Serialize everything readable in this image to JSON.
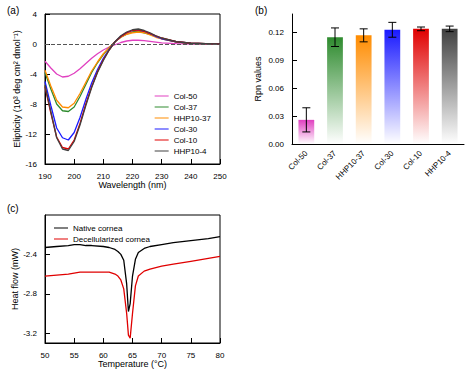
{
  "chart_data": [
    {
      "type": "line",
      "title": "(a)",
      "x_label": "Wavelength (nm)",
      "y_label": "Elipticity (10³ deg cm² dmol⁻¹)",
      "x": [
        190,
        192,
        194,
        196,
        198,
        200,
        202,
        204,
        206,
        208,
        210,
        212,
        214,
        216,
        218,
        220,
        222,
        224,
        226,
        228,
        230,
        235,
        240,
        245,
        250
      ],
      "series": [
        {
          "name": "Col-50",
          "color": "#e040c0",
          "values": [
            -2.3,
            -3.2,
            -4.0,
            -4.4,
            -4.3,
            -3.9,
            -3.3,
            -2.6,
            -1.9,
            -1.3,
            -0.8,
            -0.4,
            -0.1,
            0.2,
            0.4,
            0.5,
            0.5,
            0.45,
            0.35,
            0.25,
            0.15,
            0.05,
            0,
            0,
            0
          ]
        },
        {
          "name": "Col-37",
          "color": "#2e8b2e",
          "values": [
            -3.8,
            -6.0,
            -8.0,
            -8.9,
            -9.0,
            -8.4,
            -7.0,
            -5.4,
            -3.8,
            -2.5,
            -1.4,
            -0.5,
            0.3,
            0.9,
            1.3,
            1.6,
            1.7,
            1.5,
            1.3,
            1.0,
            0.7,
            0.3,
            0.1,
            0.05,
            0
          ]
        },
        {
          "name": "HHP10-37",
          "color": "#ff8c00",
          "values": [
            -3.5,
            -5.6,
            -7.5,
            -8.4,
            -8.5,
            -7.9,
            -6.6,
            -5.1,
            -3.6,
            -2.4,
            -1.3,
            -0.5,
            0.3,
            0.9,
            1.3,
            1.5,
            1.6,
            1.5,
            1.2,
            0.9,
            0.7,
            0.3,
            0.1,
            0.05,
            0
          ]
        },
        {
          "name": "Col-30",
          "color": "#1a1aff",
          "values": [
            -5.0,
            -8.2,
            -11.2,
            -12.5,
            -12.8,
            -11.8,
            -9.8,
            -7.4,
            -5.2,
            -3.4,
            -1.9,
            -0.7,
            0.3,
            1.0,
            1.5,
            1.8,
            1.9,
            1.7,
            1.4,
            1.0,
            0.7,
            0.3,
            0.1,
            0.05,
            0
          ]
        },
        {
          "name": "Col-10",
          "color": "#e00000",
          "values": [
            -5.7,
            -9.2,
            -12.4,
            -13.8,
            -14.0,
            -12.8,
            -10.6,
            -8.0,
            -5.7,
            -3.7,
            -2.1,
            -0.8,
            0.3,
            1.0,
            1.5,
            1.8,
            1.9,
            1.7,
            1.4,
            1.1,
            0.8,
            0.3,
            0.1,
            0.05,
            0
          ]
        },
        {
          "name": "HHP10-4",
          "color": "#404040",
          "values": [
            -5.5,
            -9.0,
            -12.5,
            -14.0,
            -14.2,
            -13.0,
            -10.8,
            -8.2,
            -5.8,
            -3.8,
            -2.2,
            -0.8,
            0.3,
            1.1,
            1.6,
            1.9,
            2.0,
            1.8,
            1.5,
            1.1,
            0.8,
            0.3,
            0.1,
            0.05,
            0
          ]
        }
      ],
      "hline": 0,
      "xlim": [
        190,
        250
      ],
      "xticks": [
        190,
        200,
        210,
        220,
        230,
        240,
        250
      ],
      "ylim": [
        -16,
        4
      ],
      "yticks": [
        -16,
        -12,
        -8,
        -4,
        0,
        4
      ],
      "legend": "lower right",
      "grid": false
    },
    {
      "type": "bar",
      "title": "(b)",
      "y_label": "Rpn values",
      "categories": [
        "Col-50",
        "Col-37",
        "HHP10-37",
        "Col-30",
        "Col-10",
        "HHP10-4"
      ],
      "values": [
        0.026,
        0.115,
        0.117,
        0.123,
        0.124,
        0.124
      ],
      "errors": [
        0.013,
        0.01,
        0.007,
        0.008,
        0.002,
        0.003
      ],
      "colors": [
        "#e040c0",
        "#2e8b2e",
        "#ff8c00",
        "#1a1aff",
        "#e00000",
        "#404040"
      ],
      "ylim": [
        0,
        0.14
      ],
      "yticks": [
        {
          "value": 0,
          "label": "0.00"
        },
        {
          "value": 0.03,
          "label": "0.03"
        },
        {
          "value": 0.06,
          "label": "0.06"
        },
        {
          "value": 0.09,
          "label": "0.09"
        },
        {
          "value": 0.12,
          "label": "0.12"
        }
      ],
      "grid": false
    },
    {
      "type": "line",
      "title": "(c)",
      "x_label": "Temperature (°C)",
      "y_label": "Heat flow (mW)",
      "x": [
        50,
        52,
        54,
        55,
        56,
        57,
        58,
        60,
        61,
        62,
        62.5,
        63,
        63.5,
        64,
        64.3,
        64.6,
        65,
        65.5,
        66,
        67,
        68,
        70,
        72,
        75,
        78,
        80
      ],
      "series": [
        {
          "name": "Native cornea",
          "color": "#000000",
          "values": [
            -2.33,
            -2.32,
            -2.31,
            -2.3,
            -2.3,
            -2.31,
            -2.31,
            -2.32,
            -2.33,
            -2.35,
            -2.37,
            -2.4,
            -2.46,
            -2.7,
            -2.98,
            -2.9,
            -2.62,
            -2.45,
            -2.38,
            -2.34,
            -2.32,
            -2.3,
            -2.28,
            -2.26,
            -2.24,
            -2.22
          ]
        },
        {
          "name": "Decellularized cornea",
          "color": "#e00000",
          "values": [
            -2.62,
            -2.61,
            -2.6,
            -2.59,
            -2.58,
            -2.58,
            -2.58,
            -2.58,
            -2.58,
            -2.6,
            -2.62,
            -2.66,
            -2.75,
            -3.0,
            -3.22,
            -3.25,
            -3.0,
            -2.72,
            -2.62,
            -2.57,
            -2.55,
            -2.52,
            -2.5,
            -2.47,
            -2.44,
            -2.42
          ]
        }
      ],
      "xlim": [
        50,
        80
      ],
      "xticks": [
        50,
        55,
        60,
        65,
        70,
        75,
        80
      ],
      "ylim": [
        -3.3,
        -2.0
      ],
      "yticks": [
        -3.2,
        -2.8,
        -2.4
      ],
      "legend": "upper left",
      "grid": false
    }
  ]
}
